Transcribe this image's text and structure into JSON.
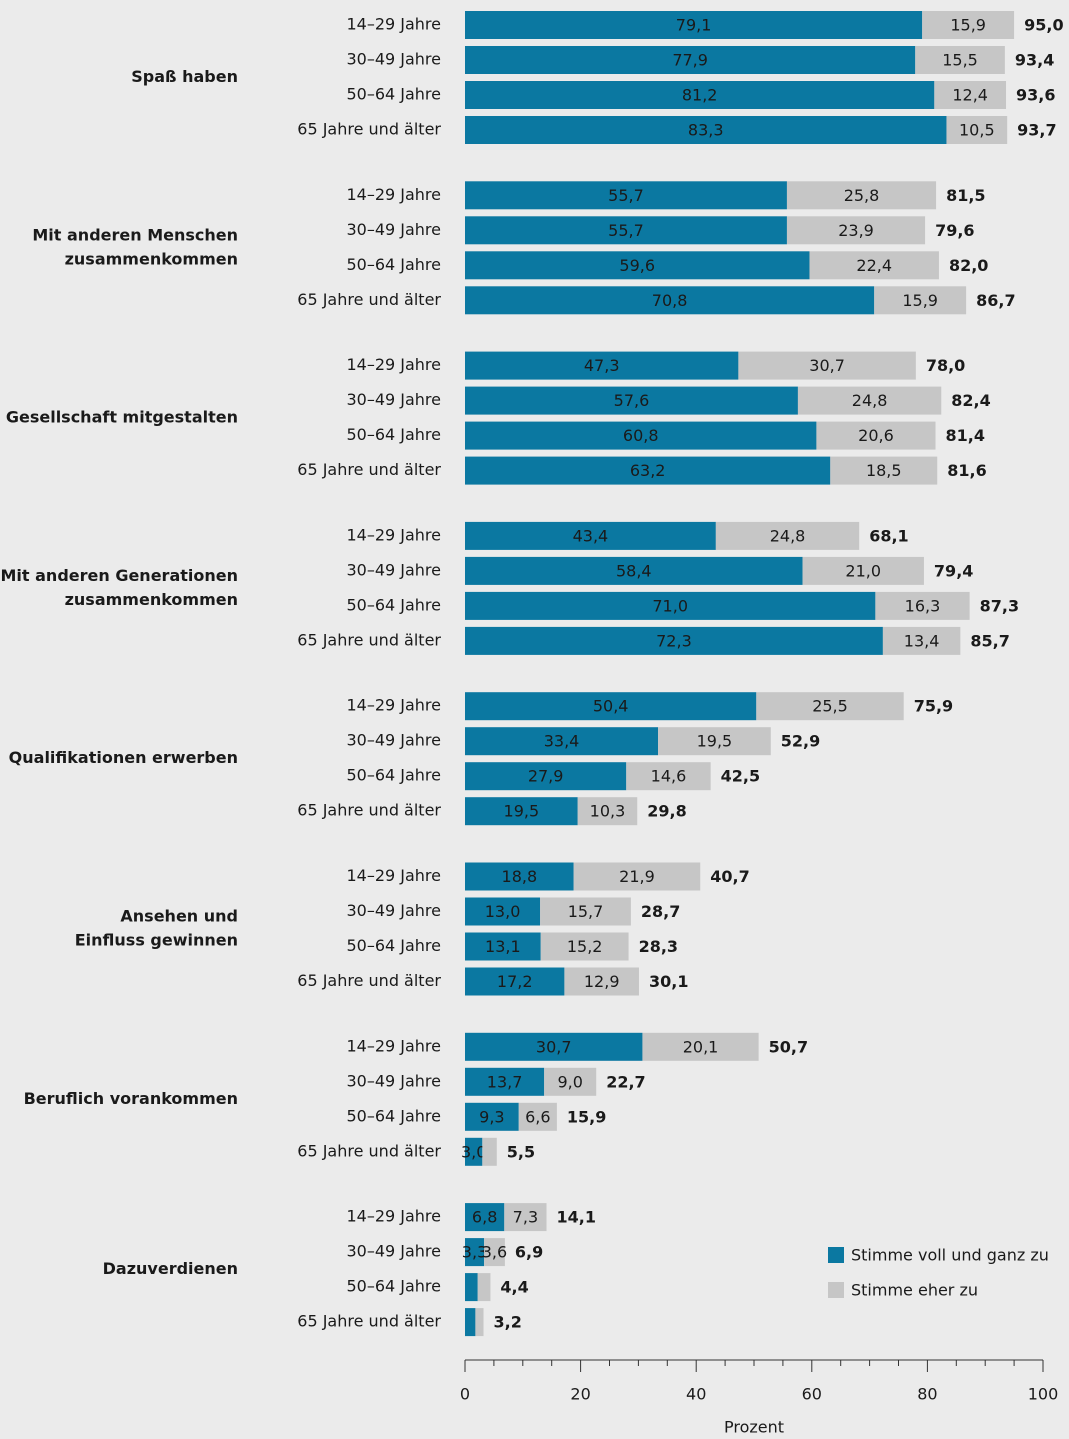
{
  "chart_data": {
    "type": "bar",
    "orientation": "horizontal",
    "stacked": true,
    "x_label": "Prozent",
    "xlim": [
      0,
      100
    ],
    "xticks": [
      0,
      20,
      40,
      60,
      80,
      100
    ],
    "xminorticks": [
      5,
      10,
      15,
      25,
      30,
      35,
      45,
      50,
      55,
      65,
      70,
      75,
      85,
      90,
      95
    ],
    "legend": "bottom-right",
    "categories": [
      "14–29 Jahre",
      "30–49 Jahre",
      "50–64 Jahre",
      "65 Jahre und älter"
    ],
    "groups": [
      [
        "Spaß haben"
      ],
      [
        "Mit anderen Menschen",
        "zusammenkommen"
      ],
      [
        "Gesellschaft mitgestalten"
      ],
      [
        "Mit anderen Generationen",
        "zusammenkommen"
      ],
      [
        "Qualifikationen erwerben"
      ],
      [
        "Ansehen und",
        "Einfluss gewinnen"
      ],
      [
        "Beruflich vorankommen"
      ],
      [
        "Dazuverdienen"
      ]
    ],
    "series": [
      {
        "name": "Stimme voll und ganz zu",
        "color": "#0b78a1",
        "values": [
          [
            79.1,
            77.9,
            81.2,
            83.3
          ],
          [
            55.7,
            55.7,
            59.6,
            70.8
          ],
          [
            47.3,
            57.6,
            60.8,
            63.2
          ],
          [
            43.4,
            58.4,
            71.0,
            72.3
          ],
          [
            50.4,
            33.4,
            27.9,
            19.5
          ],
          [
            18.8,
            13.0,
            13.1,
            17.2
          ],
          [
            30.7,
            13.7,
            9.3,
            3.0
          ],
          [
            6.8,
            3.3,
            2.2,
            1.8
          ]
        ],
        "value_labels": [
          [
            "79,1",
            "77,9",
            "81,2",
            "83,3"
          ],
          [
            "55,7",
            "55,7",
            "59,6",
            "70,8"
          ],
          [
            "47,3",
            "57,6",
            "60,8",
            "63,2"
          ],
          [
            "43,4",
            "58,4",
            "71,0",
            "72,3"
          ],
          [
            "50,4",
            "33,4",
            "27,9",
            "19,5"
          ],
          [
            "18,8",
            "13,0",
            "13,1",
            "17,2"
          ],
          [
            "30,7",
            "13,7",
            "9,3",
            "3,0"
          ],
          [
            "6,8",
            "3,3",
            null,
            null
          ]
        ]
      },
      {
        "name": "Stimme eher zu",
        "color": "#c6c6c6",
        "values": [
          [
            15.9,
            15.5,
            12.4,
            10.5
          ],
          [
            25.8,
            23.9,
            22.4,
            15.9
          ],
          [
            30.7,
            24.8,
            20.6,
            18.5
          ],
          [
            24.8,
            21.0,
            16.3,
            13.4
          ],
          [
            25.5,
            19.5,
            14.6,
            10.3
          ],
          [
            21.9,
            15.7,
            15.2,
            12.9
          ],
          [
            20.1,
            9.0,
            6.6,
            2.5
          ],
          [
            7.3,
            3.6,
            2.2,
            1.4
          ]
        ],
        "value_labels": [
          [
            "15,9",
            "15,5",
            "12,4",
            "10,5"
          ],
          [
            "25,8",
            "23,9",
            "22,4",
            "15,9"
          ],
          [
            "30,7",
            "24,8",
            "20,6",
            "18,5"
          ],
          [
            "24,8",
            "21,0",
            "16,3",
            "13,4"
          ],
          [
            "25,5",
            "19,5",
            "14,6",
            "10,3"
          ],
          [
            "21,9",
            "15,7",
            "15,2",
            "12,9"
          ],
          [
            "20,1",
            "9,0",
            "6,6",
            null
          ],
          [
            "7,3",
            "3,6",
            null,
            null
          ]
        ]
      }
    ],
    "totals": {
      "values": [
        [
          95.0,
          93.4,
          93.6,
          93.7
        ],
        [
          81.5,
          79.6,
          82.0,
          86.7
        ],
        [
          78.0,
          82.4,
          81.4,
          81.6
        ],
        [
          68.1,
          79.4,
          87.3,
          85.7
        ],
        [
          75.9,
          52.9,
          42.5,
          29.8
        ],
        [
          40.7,
          28.7,
          28.3,
          30.1
        ],
        [
          50.7,
          22.7,
          15.9,
          5.5
        ],
        [
          14.1,
          6.9,
          4.4,
          3.2
        ]
      ],
      "value_labels": [
        [
          "95,0",
          "93,4",
          "93,6",
          "93,7"
        ],
        [
          "81,5",
          "79,6",
          "82,0",
          "86,7"
        ],
        [
          "78,0",
          "82,4",
          "81,4",
          "81,6"
        ],
        [
          "68,1",
          "79,4",
          "87,3",
          "85,7"
        ],
        [
          "75,9",
          "52,9",
          "42,5",
          "29,8"
        ],
        [
          "40,7",
          "28,7",
          "28,3",
          "30,1"
        ],
        [
          "50,7",
          "22,7",
          "15,9",
          "5,5"
        ],
        [
          "14,1",
          "6,9",
          "4,4",
          "3,2"
        ]
      ]
    }
  }
}
